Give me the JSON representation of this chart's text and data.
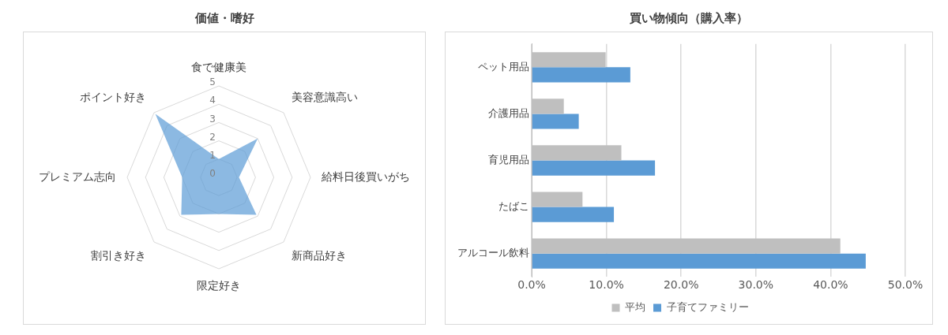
{
  "chart_data": [
    {
      "type": "radar",
      "title": "価値・嗜好",
      "categories": [
        "食で健康美",
        "美容意識高い",
        "給料日後買いがち",
        "新商品好き",
        "限定好き",
        "割引き好き",
        "プレミアム志向",
        "ポイント好き"
      ],
      "series": [
        {
          "color": "#5b9bd5",
          "values": [
            1.0,
            3.0,
            1.1,
            2.9,
            2.0,
            2.9,
            2.0,
            4.9
          ]
        }
      ],
      "ylim": [
        0,
        5
      ],
      "yticks": [
        0,
        1,
        2,
        3,
        4,
        5
      ],
      "grid": true,
      "legend": false
    },
    {
      "type": "bar",
      "orientation": "horizontal",
      "title": "買い物傾向（購入率）",
      "categories": [
        "ペット用品",
        "介護用品",
        "育児用品",
        "たばこ",
        "アルコール飲料"
      ],
      "series": [
        {
          "name": "平均",
          "color": "#bfbfbf",
          "values": [
            9.9,
            4.3,
            12.0,
            6.8,
            41.3
          ]
        },
        {
          "name": "子育てファミリー",
          "color": "#5b9bd5",
          "values": [
            13.2,
            6.3,
            16.5,
            11.0,
            44.7
          ]
        }
      ],
      "xlim": [
        0,
        50
      ],
      "xticks": [
        {
          "value": 0,
          "label": "0.0%"
        },
        {
          "value": 10,
          "label": "10.0%"
        },
        {
          "value": 20,
          "label": "20.0%"
        },
        {
          "value": 30,
          "label": "30.0%"
        },
        {
          "value": 40,
          "label": "40.0%"
        },
        {
          "value": 50,
          "label": "50.0%"
        }
      ],
      "grid": "x",
      "legend": "bottom"
    }
  ]
}
